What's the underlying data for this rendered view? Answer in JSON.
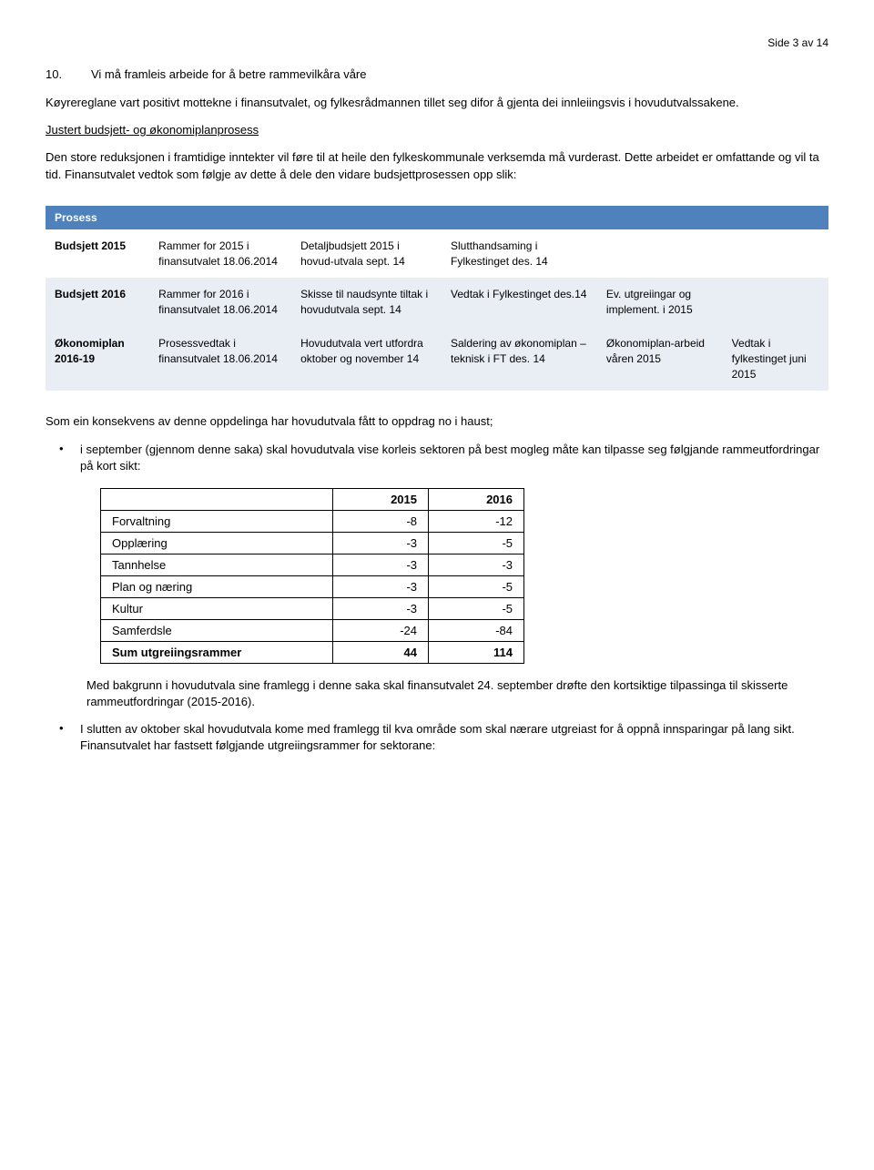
{
  "page_number": "Side 3 av 14",
  "heading": {
    "num": "10.",
    "text": "Vi må framleis arbeide for å betre rammevilkåra våre"
  },
  "para1": "Køyrereglane vart positivt mottekne i finansutvalet, og fylkesrådmannen tillet seg difor å gjenta dei innleiingsvis i hovudutvalssakene.",
  "underline_heading": "Justert budsjett- og økonomiplanprosess",
  "para2": "Den store reduksjonen i framtidige inntekter vil føre til at heile den fylkeskommunale verksemda må vurderast. Dette arbeidet er omfattande og vil ta tid. Finansutvalet vedtok som følgje av dette å dele den vidare budsjettprosessen opp slik:",
  "process": {
    "header": "Prosess",
    "rows": [
      {
        "label": "Budsjett 2015",
        "c1": "Rammer for 2015 i finansutvalet 18.06.2014",
        "c2": "Detaljbudsjett 2015 i hovud-utvala sept. 14",
        "c3": "Slutthandsaming i Fylkestinget des. 14",
        "c4": "",
        "c5": ""
      },
      {
        "label": "Budsjett 2016",
        "c1": "Rammer for 2016 i finansutvalet 18.06.2014",
        "c2": "Skisse til naudsynte tiltak i hovudutvala sept. 14",
        "c3": "Vedtak i Fylkestinget des.14",
        "c4": "Ev. utgreiingar og implement. i 2015",
        "c5": ""
      },
      {
        "label": "Økonomiplan 2016-19",
        "c1": "Prosessvedtak i finansutvalet 18.06.2014",
        "c2": "Hovudutvala vert utfordra oktober og november 14",
        "c3": "Saldering av økonomiplan – teknisk i FT des. 14",
        "c4": "Økonomiplan-arbeid våren 2015",
        "c5": "Vedtak i fylkestinget juni 2015"
      }
    ]
  },
  "para3": "Som ein konsekvens av denne oppdelinga har hovudutvala fått to oppdrag no i haust;",
  "bullet1": "i september (gjennom denne saka) skal hovudutvala vise korleis sektoren på best mogleg måte kan tilpasse seg følgjande rammeutfordringar på kort sikt:",
  "figures": {
    "columns": [
      "",
      "2015",
      "2016"
    ],
    "rows": [
      [
        "Forvaltning",
        "-8",
        "-12"
      ],
      [
        "Opplæring",
        "-3",
        "-5"
      ],
      [
        "Tannhelse",
        "-3",
        "-3"
      ],
      [
        "Plan og næring",
        "-3",
        "-5"
      ],
      [
        "Kultur",
        "-3",
        "-5"
      ],
      [
        "Samferdsle",
        "-24",
        "-84"
      ]
    ],
    "sum": [
      "Sum utgreiingsrammer",
      "44",
      "114"
    ]
  },
  "para4": "Med bakgrunn i hovudutvala sine framlegg i denne saka skal finansutvalet 24. september drøfte den kortsiktige tilpassinga til skisserte rammeutfordringar (2015-2016).",
  "bullet2": "I slutten av oktober skal hovudutvala kome med framlegg til kva område som skal nærare utgreiast for å oppnå innsparingar på lang sikt. Finansutvalet har fastsett følgjande utgreiingsrammer for sektorane:"
}
